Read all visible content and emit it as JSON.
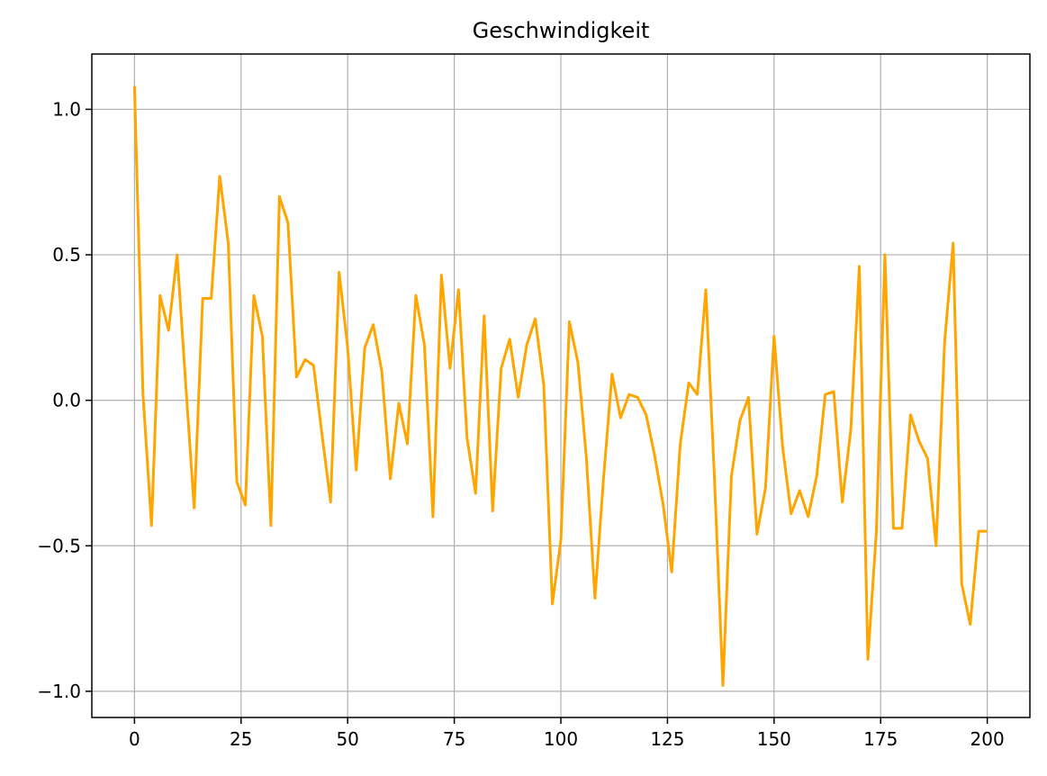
{
  "chart_data": {
    "type": "line",
    "title": "Geschwindigkeit",
    "xlabel": "",
    "ylabel": "",
    "xlim": [
      -10,
      210
    ],
    "ylim": [
      -1.09,
      1.19
    ],
    "xticks": [
      0,
      25,
      50,
      75,
      100,
      125,
      150,
      175,
      200
    ],
    "yticks": [
      -1.0,
      -0.5,
      0.0,
      0.5,
      1.0
    ],
    "xtick_labels": [
      "0",
      "25",
      "50",
      "75",
      "100",
      "125",
      "150",
      "175",
      "200"
    ],
    "ytick_labels": [
      "−1.0",
      "−0.5",
      "0.0",
      "0.5",
      "1.0"
    ],
    "grid": true,
    "line_color": "#ffa500",
    "series": [
      {
        "x": [
          0,
          2,
          4,
          6,
          8,
          10,
          12,
          14,
          16,
          18,
          20,
          22,
          24,
          26,
          28,
          30,
          32,
          34,
          36,
          38,
          40,
          42,
          44,
          46,
          48,
          50,
          52,
          54,
          56,
          58,
          60,
          62,
          64,
          66,
          68,
          70,
          72,
          74,
          76,
          78,
          80,
          82,
          84,
          86,
          88,
          90,
          92,
          94,
          96,
          98,
          100,
          102,
          104,
          106,
          108,
          110,
          112,
          114,
          116,
          118,
          120,
          122,
          124,
          126,
          128,
          130,
          132,
          134,
          136,
          138,
          140,
          142,
          144,
          146,
          148,
          150,
          152,
          154,
          156,
          158,
          160,
          162,
          164,
          166,
          168,
          170,
          172,
          174,
          176,
          178,
          180,
          182,
          184,
          186,
          188,
          190,
          192,
          194,
          196,
          198,
          200
        ],
        "y": [
          1.08,
          0.02,
          -0.43,
          0.36,
          0.24,
          0.5,
          0.06,
          -0.37,
          0.35,
          0.35,
          0.77,
          0.54,
          -0.28,
          -0.36,
          0.36,
          0.22,
          -0.43,
          0.7,
          0.61,
          0.08,
          0.14,
          0.12,
          -0.12,
          -0.35,
          0.44,
          0.18,
          -0.24,
          0.18,
          0.26,
          0.1,
          -0.27,
          -0.01,
          -0.15,
          0.36,
          0.19,
          -0.4,
          0.43,
          0.11,
          0.38,
          -0.13,
          -0.32,
          0.29,
          -0.38,
          0.11,
          0.21,
          0.01,
          0.19,
          0.28,
          0.05,
          -0.7,
          -0.48,
          0.27,
          0.13,
          -0.2,
          -0.68,
          -0.27,
          0.09,
          -0.06,
          0.02,
          0.01,
          -0.05,
          -0.19,
          -0.36,
          -0.59,
          -0.15,
          0.06,
          0.02,
          0.38,
          -0.26,
          -0.98,
          -0.26,
          -0.07,
          0.01,
          -0.46,
          -0.3,
          0.22,
          -0.16,
          -0.39,
          -0.31,
          -0.4,
          -0.26,
          0.02,
          0.03,
          -0.35,
          -0.1,
          0.46,
          -0.89,
          -0.45,
          0.5,
          -0.44,
          -0.44,
          -0.05,
          -0.14,
          -0.2,
          -0.5,
          0.2,
          0.54,
          -0.63,
          -0.77,
          -0.45,
          -0.45
        ]
      }
    ]
  }
}
